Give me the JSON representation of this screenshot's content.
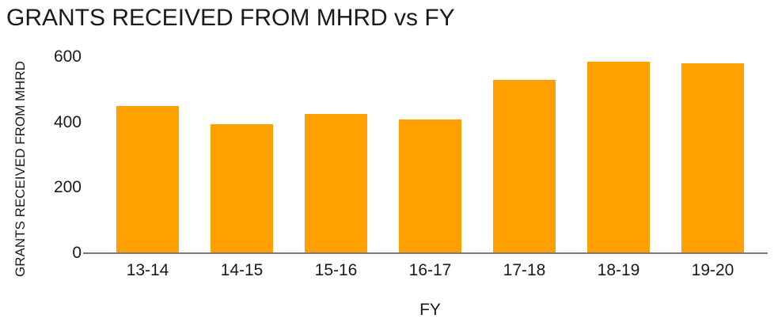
{
  "chart_data": {
    "type": "bar",
    "title": "GRANTS RECEIVED FROM MHRD vs FY",
    "xlabel": "FY",
    "ylabel": "GRANTS RECEIVED FROM MHRD",
    "categories": [
      "13-14",
      "14-15",
      "15-16",
      "16-17",
      "17-18",
      "18-19",
      "19-20"
    ],
    "values": [
      450,
      395,
      425,
      410,
      530,
      585,
      580
    ],
    "ylim": [
      0,
      600
    ],
    "yticks": [
      0,
      200,
      400,
      600
    ],
    "grid": false,
    "legend": "none",
    "colors": {
      "bar": "#ffa000",
      "axis_line": "#7a7a7a",
      "text": "#1a1a1a",
      "background": "#ffffff"
    }
  }
}
